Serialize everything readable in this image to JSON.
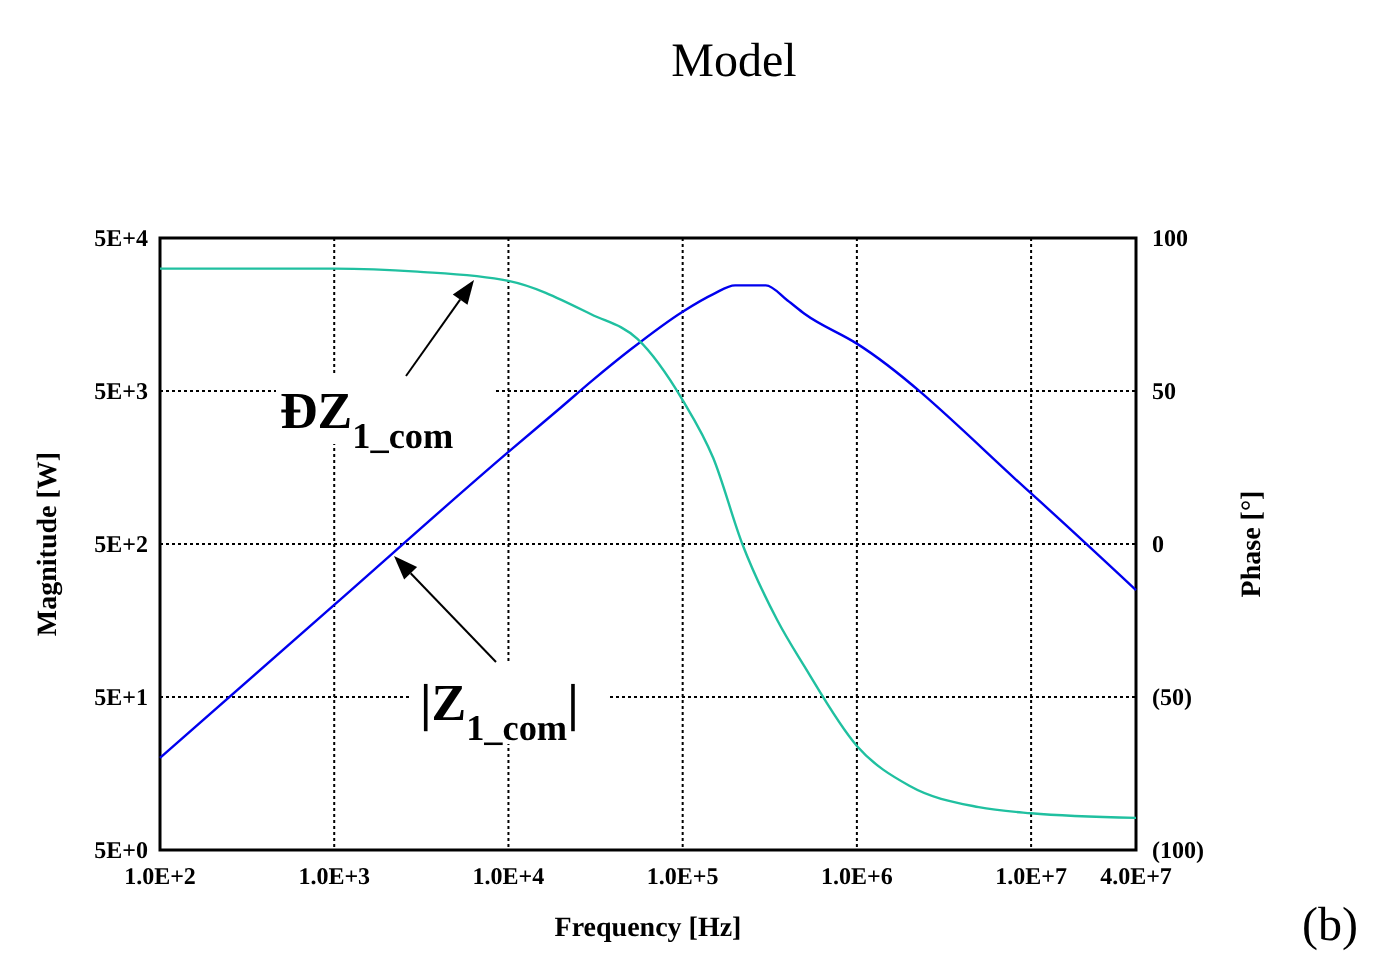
{
  "chart_data": {
    "type": "line",
    "title": "Model",
    "xlabel": "Frequency [Hz]",
    "ylabel": "Magnitude  [W]",
    "y2label": "Phase [°]",
    "log": "xy",
    "grid": true,
    "line_style": "solid",
    "xlim": [
      100,
      40000000
    ],
    "xticks": [
      {
        "value": 100,
        "label": "1.0E+2"
      },
      {
        "value": 1000,
        "label": "1.0E+3"
      },
      {
        "value": 10000,
        "label": "1.0E+4"
      },
      {
        "value": 100000,
        "label": "1.0E+5"
      },
      {
        "value": 1000000,
        "label": "1.0E+6"
      },
      {
        "value": 10000000,
        "label": "1.0E+7"
      },
      {
        "value": 40000000,
        "label": "4.0E+7"
      }
    ],
    "ylim": [
      5,
      50000
    ],
    "yticks": [
      {
        "value": 5,
        "label": "5E+0"
      },
      {
        "value": 50,
        "label": "5E+1"
      },
      {
        "value": 500,
        "label": "5E+2"
      },
      {
        "value": 5000,
        "label": "5E+3"
      },
      {
        "value": 50000,
        "label": "5E+4"
      }
    ],
    "y2lim": [
      -100,
      100
    ],
    "y2ticks": [
      {
        "value": -100,
        "label": "(100)"
      },
      {
        "value": -50,
        "label": "(50)"
      },
      0,
      50,
      100
    ],
    "series": [
      {
        "color": "#0000ee",
        "x": [
          100,
          1000,
          10000,
          20000,
          30000,
          50000,
          100000,
          150000,
          200000,
          300000,
          400000,
          500000,
          1000000,
          10000000,
          40000000
        ],
        "values": [
          20,
          200,
          2000,
          3900,
          5800,
          9300,
          16500,
          21500,
          24500,
          24500,
          19500,
          16000,
          10200,
          1070,
          250
        ]
      },
      {
        "color": "#20c0a0",
        "axis": "y2",
        "x": [
          100,
          1000,
          3000,
          10000,
          30000,
          55000,
          100000,
          150000,
          220000,
          350000,
          500000,
          1000000,
          2000000,
          5000000,
          10000000,
          40000000
        ],
        "values": [
          90,
          90,
          89,
          86,
          75,
          67,
          47,
          28,
          0,
          -25,
          -40,
          -66,
          -79,
          -86,
          -88,
          -89.5
        ]
      }
    ],
    "annotations": [
      "ÐZ$_{1_com}$",
      "|Z$_{1_com}$|",
      "(b)"
    ]
  }
}
